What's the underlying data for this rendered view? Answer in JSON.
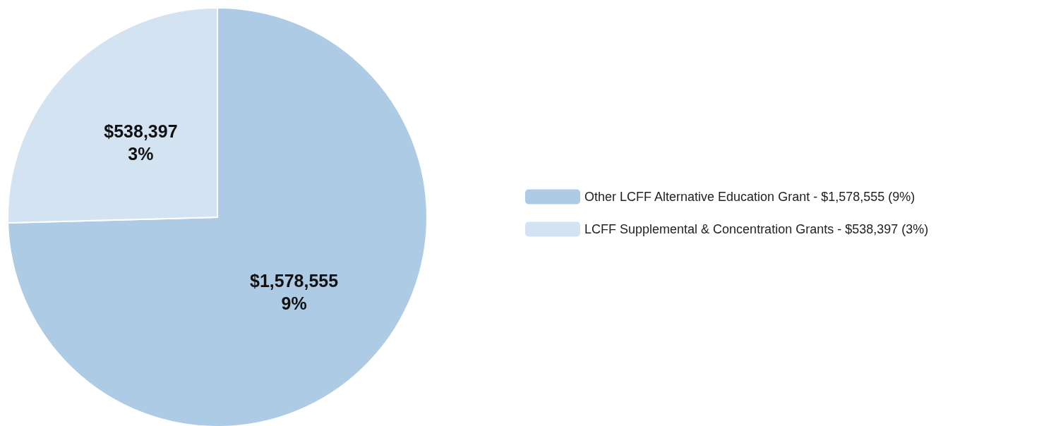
{
  "chart_data": {
    "type": "pie",
    "categories": [
      "Other LCFF Alternative Education Grant - $1,578,555 (9%)",
      "LCFF Supplemental & Concentration Grants - $538,397 (3%)"
    ],
    "values": [
      1578555,
      538397
    ],
    "colors": [
      "#aecbe6",
      "#d4e3f2"
    ],
    "value_labels": [
      "$1,578,555\n9%",
      "$538,397\n3%"
    ],
    "legend": "right"
  }
}
